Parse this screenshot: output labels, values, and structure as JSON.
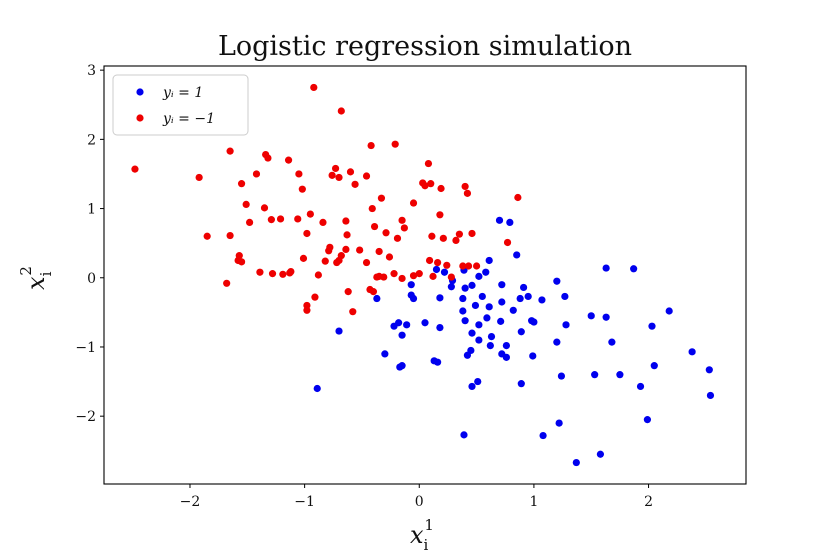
{
  "chart_data": {
    "type": "scatter",
    "title": "Logistic regression simulation",
    "xlabel": "x",
    "xlabel_sub": "i",
    "xlabel_sup": "1",
    "ylabel": "x",
    "ylabel_sub": "i",
    "ylabel_sup": "2",
    "xlim": [
      -2.75,
      2.85
    ],
    "ylim": [
      -2.98,
      3.06
    ],
    "xticks": [
      -2,
      -1,
      0,
      1,
      2
    ],
    "yticks": [
      -2,
      -1,
      0,
      1,
      2,
      3
    ],
    "xtick_labels": [
      "−2",
      "−1",
      "0",
      "1",
      "2"
    ],
    "ytick_labels": [
      "−2",
      "−1",
      "0",
      "1",
      "2",
      "3"
    ],
    "legend_position": "top-left",
    "series": [
      {
        "name": "y_i = 1",
        "legend_label": "yᵢ = 1",
        "color": "#0000ee",
        "points": [
          [
            1.37,
            -2.67
          ],
          [
            1.58,
            -2.55
          ],
          [
            0.39,
            -2.27
          ],
          [
            1.08,
            -2.28
          ],
          [
            1.22,
            -2.1
          ],
          [
            1.99,
            -2.05
          ],
          [
            0.46,
            -1.57
          ],
          [
            0.51,
            -1.5
          ],
          [
            0.89,
            -1.53
          ],
          [
            1.24,
            -1.42
          ],
          [
            1.53,
            -1.4
          ],
          [
            1.75,
            -1.4
          ],
          [
            1.93,
            -1.57
          ],
          [
            2.54,
            -1.7
          ],
          [
            2.53,
            -1.33
          ],
          [
            2.05,
            -1.27
          ],
          [
            2.38,
            -1.07
          ],
          [
            -0.89,
            -1.6
          ],
          [
            -0.3,
            -1.1
          ],
          [
            -0.17,
            -1.29
          ],
          [
            -0.15,
            -1.27
          ],
          [
            0.13,
            -1.2
          ],
          [
            0.16,
            -1.22
          ],
          [
            0.42,
            -1.12
          ],
          [
            0.45,
            -1.05
          ],
          [
            0.52,
            -0.9
          ],
          [
            0.62,
            -0.98
          ],
          [
            0.72,
            -1.1
          ],
          [
            0.76,
            -1.15
          ],
          [
            0.99,
            -1.13
          ],
          [
            1.2,
            -0.93
          ],
          [
            1.68,
            -0.93
          ],
          [
            -0.7,
            -0.77
          ],
          [
            -0.22,
            -0.7
          ],
          [
            -0.18,
            -0.65
          ],
          [
            -0.15,
            -0.83
          ],
          [
            -0.11,
            -0.68
          ],
          [
            0.05,
            -0.65
          ],
          [
            0.18,
            -0.72
          ],
          [
            0.38,
            -0.48
          ],
          [
            0.4,
            -0.62
          ],
          [
            0.46,
            -0.8
          ],
          [
            0.52,
            -0.68
          ],
          [
            0.59,
            -0.58
          ],
          [
            0.63,
            -0.85
          ],
          [
            0.71,
            -0.63
          ],
          [
            0.76,
            -0.98
          ],
          [
            0.82,
            -0.47
          ],
          [
            0.89,
            -0.78
          ],
          [
            0.98,
            -0.62
          ],
          [
            1.0,
            -0.64
          ],
          [
            1.28,
            -0.68
          ],
          [
            1.5,
            -0.55
          ],
          [
            1.63,
            -0.57
          ],
          [
            2.03,
            -0.7
          ],
          [
            2.18,
            -0.48
          ],
          [
            -0.37,
            -0.3
          ],
          [
            -0.07,
            -0.25
          ],
          [
            -0.05,
            -0.3
          ],
          [
            0.18,
            -0.29
          ],
          [
            0.38,
            -0.3
          ],
          [
            0.49,
            -0.4
          ],
          [
            0.55,
            -0.27
          ],
          [
            0.61,
            -0.42
          ],
          [
            0.72,
            -0.35
          ],
          [
            0.88,
            -0.3
          ],
          [
            0.95,
            -0.27
          ],
          [
            1.07,
            -0.32
          ],
          [
            1.27,
            -0.27
          ],
          [
            1.2,
            -0.05
          ],
          [
            0.91,
            -0.14
          ],
          [
            0.72,
            -0.1
          ],
          [
            0.46,
            -0.11
          ],
          [
            0.4,
            -0.15
          ],
          [
            0.28,
            -0.13
          ],
          [
            0.22,
            0.08
          ],
          [
            0.15,
            0.12
          ],
          [
            0.29,
            -0.04
          ],
          [
            0.39,
            0.11
          ],
          [
            0.52,
            0.02
          ],
          [
            0.58,
            0.08
          ],
          [
            0.61,
            0.25
          ],
          [
            0.85,
            0.33
          ],
          [
            0.7,
            0.83
          ],
          [
            0.79,
            0.8
          ],
          [
            1.87,
            0.13
          ],
          [
            1.63,
            0.14
          ],
          [
            -0.07,
            -0.1
          ]
        ]
      },
      {
        "name": "y_i = -1",
        "legend_label": "yᵢ = −1",
        "color": "#ee0000",
        "points": [
          [
            -2.48,
            1.57
          ],
          [
            -1.92,
            1.45
          ],
          [
            -1.85,
            0.6
          ],
          [
            -1.68,
            -0.08
          ],
          [
            -1.65,
            1.83
          ],
          [
            -1.58,
            0.25
          ],
          [
            -1.57,
            0.32
          ],
          [
            -1.55,
            0.23
          ],
          [
            -1.55,
            1.36
          ],
          [
            -1.51,
            1.06
          ],
          [
            -1.48,
            0.8
          ],
          [
            -1.42,
            1.5
          ],
          [
            -1.35,
            1.01
          ],
          [
            -1.34,
            1.78
          ],
          [
            -1.32,
            1.73
          ],
          [
            -1.29,
            0.84
          ],
          [
            -1.21,
            0.85
          ],
          [
            -1.19,
            0.05
          ],
          [
            -1.14,
            1.7
          ],
          [
            -1.12,
            0.09
          ],
          [
            -1.06,
            0.85
          ],
          [
            -1.05,
            1.5
          ],
          [
            -1.02,
            1.28
          ],
          [
            -1.01,
            0.28
          ],
          [
            -0.98,
            0.64
          ],
          [
            -0.95,
            0.92
          ],
          [
            -0.88,
            0.04
          ],
          [
            -0.84,
            0.8
          ],
          [
            -0.79,
            0.39
          ],
          [
            -0.76,
            1.48
          ],
          [
            -0.73,
            1.58
          ],
          [
            -0.72,
            0.22
          ],
          [
            -0.7,
            1.45
          ],
          [
            -0.68,
            0.32
          ],
          [
            -0.64,
            0.82
          ],
          [
            -0.63,
            0.62
          ],
          [
            -0.6,
            1.53
          ],
          [
            -0.56,
            1.35
          ],
          [
            -0.52,
            0.4
          ],
          [
            -0.46,
            1.47
          ],
          [
            -0.42,
            1.91
          ],
          [
            -0.41,
            1.0
          ],
          [
            -0.39,
            0.74
          ],
          [
            -0.35,
            0.38
          ],
          [
            -0.33,
            1.15
          ],
          [
            -0.29,
            0.65
          ],
          [
            -0.26,
            0.3
          ],
          [
            -0.21,
            1.93
          ],
          [
            -0.19,
            0.57
          ],
          [
            -0.15,
            0.83
          ],
          [
            -0.13,
            0.72
          ],
          [
            -0.05,
            1.08
          ],
          [
            0.03,
            1.37
          ],
          [
            0.05,
            1.33
          ],
          [
            0.08,
            1.65
          ],
          [
            0.09,
            0.25
          ],
          [
            0.1,
            1.36
          ],
          [
            0.11,
            0.6
          ],
          [
            0.12,
            0.02
          ],
          [
            0.16,
            0.22
          ],
          [
            0.18,
            0.91
          ],
          [
            0.19,
            1.29
          ],
          [
            0.21,
            0.57
          ],
          [
            0.24,
            0.18
          ],
          [
            0.28,
            0.01
          ],
          [
            0.32,
            0.54
          ],
          [
            0.35,
            0.63
          ],
          [
            0.38,
            0.17
          ],
          [
            0.4,
            1.32
          ],
          [
            0.42,
            1.22
          ],
          [
            0.43,
            0.17
          ],
          [
            0.46,
            0.64
          ],
          [
            0.5,
            0.17
          ],
          [
            0.77,
            0.51
          ],
          [
            0.86,
            1.16
          ],
          [
            -0.92,
            2.75
          ],
          [
            -0.68,
            2.41
          ],
          [
            -1.65,
            0.61
          ],
          [
            -0.4,
            -0.2
          ],
          [
            -1.39,
            0.08
          ],
          [
            -1.28,
            0.06
          ],
          [
            -1.13,
            0.07
          ],
          [
            -0.98,
            -0.4
          ],
          [
            -0.98,
            -0.47
          ],
          [
            -0.91,
            -0.28
          ],
          [
            -0.82,
            0.24
          ],
          [
            -0.62,
            -0.2
          ],
          [
            -0.58,
            -0.49
          ],
          [
            -0.46,
            0.22
          ],
          [
            -0.43,
            -0.17
          ],
          [
            -0.37,
            0.01
          ],
          [
            -0.35,
            0.02
          ],
          [
            -0.31,
            0.01
          ],
          [
            -0.22,
            0.06
          ],
          [
            -0.15,
            -0.01
          ],
          [
            -0.05,
            0.03
          ],
          [
            0.0,
            0.06
          ],
          [
            -0.78,
            0.44
          ],
          [
            -0.7,
            0.25
          ],
          [
            -0.64,
            0.41
          ]
        ]
      }
    ]
  }
}
